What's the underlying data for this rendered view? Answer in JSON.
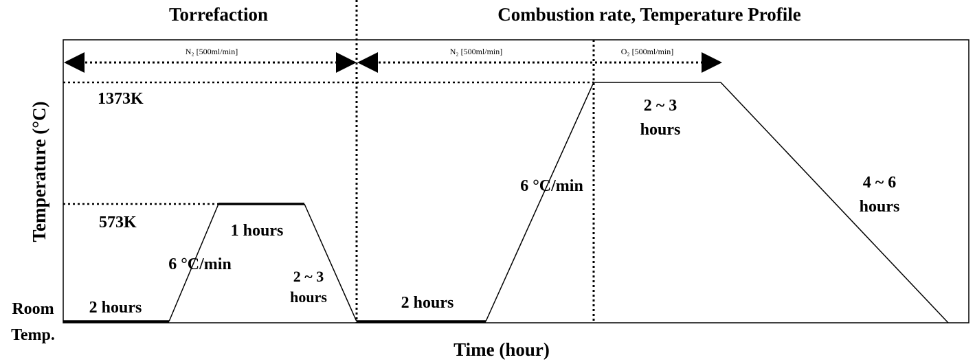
{
  "titles": {
    "left": "Torrefaction",
    "right": "Combustion rate, Temperature Profile"
  },
  "axes": {
    "ylabel": "Temperature (°C)",
    "xlabel": "Time (hour)"
  },
  "levels": {
    "high": "1373K",
    "mid": "573K",
    "room_line1": "Room",
    "room_line2": "Temp."
  },
  "gas_flows": [
    {
      "label": "N₂ [500ml/min]"
    },
    {
      "label": "N₂ [500ml/min]"
    },
    {
      "label": "O₂ [500ml/min]"
    }
  ],
  "steps": {
    "torr_hold_start": "2 hours",
    "torr_ramp": "6 °C/min",
    "torr_hold": "1 hours",
    "torr_cool_line1": "2 ~ 3",
    "torr_cool_line2": "hours",
    "comb_hold_start": "2 hours",
    "comb_ramp": "6 °C/min",
    "comb_hold_line1": "2 ~ 3",
    "comb_hold_line2": "hours",
    "comb_cool_line1": "4 ~ 6",
    "comb_cool_line2": "hours"
  }
}
